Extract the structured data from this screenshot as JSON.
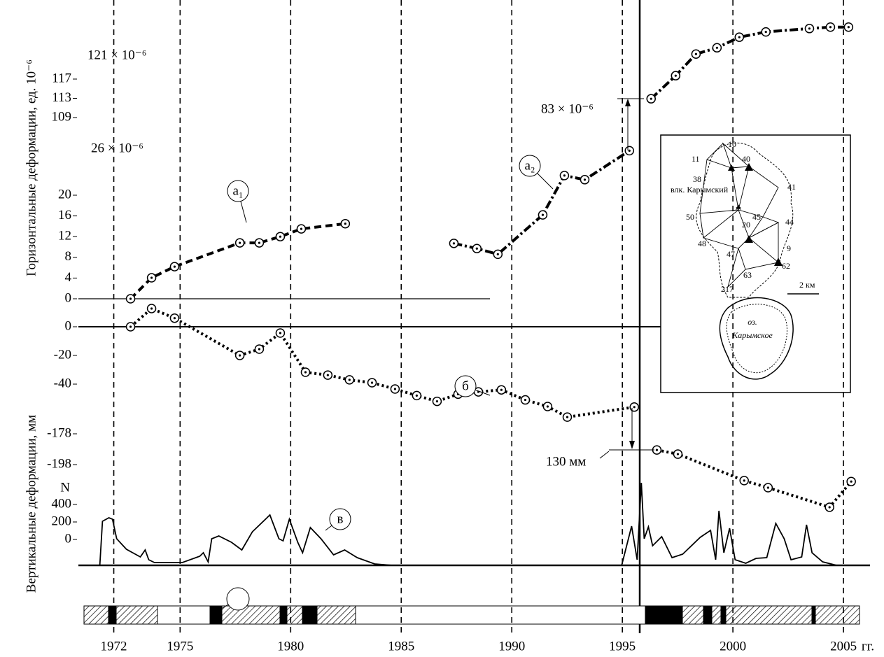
{
  "chart_data": [
    {
      "type": "line",
      "y_label": "Горизонтальные деформации, ед. 10⁻⁶",
      "xlim": [
        1970.4,
        2006.2
      ],
      "ylim": [
        0,
        30
      ],
      "yticks": [
        0,
        4,
        8,
        12,
        16,
        20
      ],
      "annotations": [
        "121 × 10⁻⁶",
        "26 × 10⁻⁶",
        "83 × 10⁻⁶"
      ],
      "series": [
        {
          "name": "а₁",
          "color": "#000000",
          "line_style": "dashed",
          "x": [
            1972.76,
            1973.71,
            1974.75,
            1977.7,
            1978.58,
            1979.53,
            1980.48,
            1982.47
          ],
          "values": [
            0,
            4.05,
            6.2,
            10.8,
            10.8,
            12.0,
            13.5,
            14.5
          ]
        },
        {
          "name": "а₂",
          "color": "#000000",
          "line_style": "dashdot",
          "x": [
            1987.38,
            1988.42,
            1989.37,
            1991.4,
            1992.38,
            1993.3,
            1995.32
          ],
          "values": [
            10.7,
            9.7,
            8.6,
            16.2,
            23.8,
            23.0,
            28.6
          ]
        }
      ]
    },
    {
      "type": "line",
      "xlim": [
        1970.4,
        2006.2
      ],
      "ylim": [
        105,
        130
      ],
      "yticks": [
        109,
        113,
        117
      ],
      "series": [
        {
          "color": "#000000",
          "line_style": "dashdot",
          "x": [
            1996.3,
            1997.41,
            1998.33,
            1999.28,
            2000.29,
            2001.49,
            2003.46,
            2004.41,
            2005.23
          ],
          "values": [
            112.9,
            117.7,
            122.2,
            123.5,
            125.7,
            126.8,
            127.5,
            127.8,
            127.8
          ]
        }
      ]
    },
    {
      "type": "line",
      "y_label": "Вертикальные деформации, мм",
      "xlim": [
        1970.4,
        2006.2
      ],
      "ylim": [
        -70,
        20
      ],
      "yticks": [
        0,
        -20,
        -40
      ],
      "annotations": [
        "130 мм"
      ],
      "series": [
        {
          "name": "б",
          "color": "#000000",
          "line_style": "dotted",
          "x": [
            1972.76,
            1973.71,
            1974.75,
            1977.7,
            1978.58,
            1979.53,
            1980.67,
            1981.68,
            1982.66,
            1983.68,
            1984.72,
            1985.7,
            1986.62,
            1987.57,
            1988.49,
            1989.53,
            1990.61,
            1991.62,
            1992.51,
            1995.54
          ],
          "values": [
            0,
            12.7,
            6,
            -20,
            -15.6,
            -4.4,
            -31.7,
            -33.7,
            -37,
            -39,
            -43.4,
            -48,
            -52,
            -47,
            -45.4,
            -44,
            -51,
            -55.6,
            -63,
            -56
          ]
        }
      ]
    },
    {
      "type": "line",
      "xlim": [
        1970.4,
        2006.2
      ],
      "ylim": [
        -232,
        -168
      ],
      "yticks": [
        -178,
        -198
      ],
      "series": [
        {
          "color": "#000000",
          "line_style": "dotted",
          "x": [
            1996.56,
            1997.51,
            2000.51,
            2001.59,
            2004.37,
            2005.35
          ],
          "values": [
            -188.5,
            -191.2,
            -208.4,
            -213,
            -225.7,
            -209
          ]
        }
      ]
    },
    {
      "type": "line",
      "y_label": "N",
      "x_label": "гг.",
      "xlim": [
        1970.4,
        2006.2
      ],
      "ylim": [
        -300,
        660
      ],
      "yticks": [
        0,
        200,
        400
      ],
      "xticks": [
        1972,
        1975,
        1980,
        1985,
        1990,
        1995,
        2000,
        2005
      ],
      "series": [
        {
          "name": "в",
          "color": "#000000",
          "line_style": "solid",
          "x": [
            1971.37,
            1971.49,
            1971.78,
            1971.94,
            1972.13,
            1972.57,
            1973.2,
            1973.42,
            1973.58,
            1973.84,
            1975.1,
            1975.89,
            1976.05,
            1976.27,
            1976.43,
            1976.75,
            1977.32,
            1977.79,
            1978.27,
            1979.06,
            1979.47,
            1979.66,
            1979.94,
            1980.32,
            1980.54,
            1980.89,
            1981.37,
            1981.94,
            1982.44,
            1983.01,
            1983.8,
            1984.59,
            1990,
            1994.97,
            1995.42,
            1995.67,
            1995.86,
            1995.99,
            1996.18,
            1996.37,
            1996.78,
            1997.25,
            1997.73,
            1998.52,
            1998.99,
            1999.22,
            1999.37,
            1999.59,
            1999.85,
            2000.1,
            2000.58,
            2001.05,
            2001.53,
            2001.94,
            2002.32,
            2002.63,
            2003.11,
            2003.33,
            2003.58,
            2004.06,
            2004.69
          ],
          "values": [
            -296,
            208,
            248,
            232,
            8,
            -112,
            -200,
            -120,
            -232,
            -264,
            -264,
            -192,
            -152,
            -256,
            8,
            40,
            -32,
            -120,
            88,
            280,
            8,
            -16,
            232,
            -32,
            -152,
            136,
            8,
            -176,
            -120,
            -208,
            -280,
            -296,
            null,
            -296,
            152,
            -232,
            648,
            8,
            144,
            -72,
            32,
            -208,
            -168,
            24,
            104,
            -232,
            328,
            -152,
            128,
            -232,
            -272,
            -216,
            -208,
            184,
            8,
            -232,
            -200,
            168,
            -152,
            -256,
            -296
          ]
        }
      ]
    }
  ],
  "inset": {
    "labels": [
      "10",
      "11",
      "40",
      "38",
      "влк. Карымский",
      "41",
      "50",
      "20",
      "45",
      "44",
      "48",
      "47",
      "9",
      "62",
      "63",
      "217",
      "2 км",
      "оз.",
      "Карымское"
    ]
  }
}
